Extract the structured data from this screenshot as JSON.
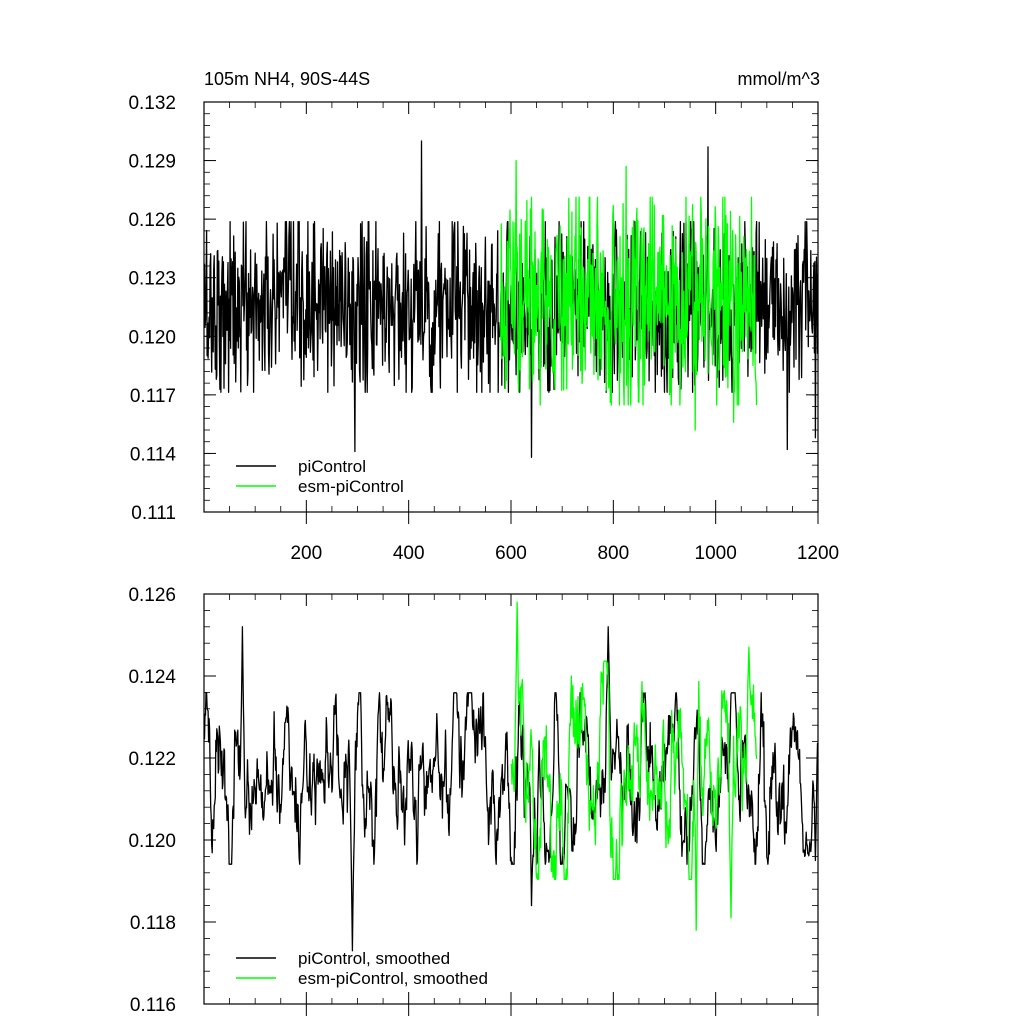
{
  "chart_data": [
    {
      "type": "line",
      "title": "105m NH4, 90S-44S",
      "units": "mmol/m^3",
      "xlim": [
        0,
        1200
      ],
      "ylim": [
        0.111,
        0.132
      ],
      "x_ticks": [
        200,
        400,
        600,
        800,
        1000,
        1200
      ],
      "x_tick_labels": [
        "200",
        "400",
        "600",
        "800",
        "1000",
        "1200"
      ],
      "y_ticks": [
        0.111,
        0.114,
        0.117,
        0.12,
        0.123,
        0.126,
        0.129,
        0.132
      ],
      "y_tick_labels": [
        "0.111",
        "0.114",
        "0.117",
        "0.120",
        "0.123",
        "0.126",
        "0.129",
        "0.132"
      ],
      "legend": "bottom-left",
      "series": [
        {
          "name": "piControl",
          "color": "#000000",
          "x_start": 1,
          "x_end": 1200,
          "mean": 0.1215,
          "noise_amplitude": 0.0023,
          "notable_points": [
            [
              295,
              0.1141
            ],
            [
              425,
              0.13
            ],
            [
              640,
              0.1138
            ],
            [
              985,
              0.1297
            ],
            [
              1140,
              0.1142
            ],
            [
              1195,
              0.1148
            ]
          ]
        },
        {
          "name": "esm-piControl",
          "color": "#00ff00",
          "x_start": 580,
          "x_end": 1080,
          "mean": 0.1218,
          "noise_amplitude": 0.0028,
          "notable_points": [
            [
              610,
              0.129
            ],
            [
              825,
              0.1287
            ],
            [
              960,
              0.1152
            ],
            [
              1035,
              0.1156
            ]
          ]
        }
      ]
    },
    {
      "type": "line",
      "xlim": [
        0,
        1200
      ],
      "ylim": [
        0.116,
        0.126
      ],
      "y_ticks": [
        0.116,
        0.118,
        0.12,
        0.122,
        0.124,
        0.126
      ],
      "y_tick_labels": [
        "0.116",
        "0.118",
        "0.120",
        "0.122",
        "0.124",
        "0.126"
      ],
      "x_tick_labels_shown": false,
      "legend": "bottom-left",
      "series": [
        {
          "name": "piControl, smoothed",
          "color": "#000000",
          "x_start": 1,
          "x_end": 1200,
          "mean": 0.1215,
          "noise_amplitude": 0.0011,
          "notable_points": [
            [
              75,
              0.1252
            ],
            [
              290,
              0.1173
            ],
            [
              640,
              0.1184
            ],
            [
              790,
              0.1252
            ],
            [
              1195,
              0.1195
            ]
          ]
        },
        {
          "name": "esm-piControl, smoothed",
          "color": "#00ff00",
          "x_start": 600,
          "x_end": 1080,
          "mean": 0.1217,
          "noise_amplitude": 0.0014,
          "notable_points": [
            [
              612,
              0.1258
            ],
            [
              962,
              0.1178
            ],
            [
              1030,
              0.1181
            ],
            [
              1065,
              0.1247
            ]
          ]
        }
      ]
    }
  ]
}
